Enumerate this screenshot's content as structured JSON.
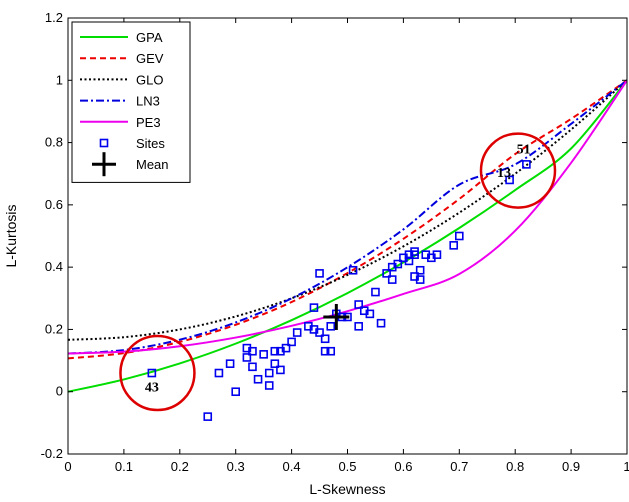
{
  "chart_data": {
    "type": "line",
    "title": "",
    "xlabel": "L-Skewness",
    "ylabel": "L-Kurtosis",
    "xlim": [
      0,
      1
    ],
    "ylim": [
      -0.2,
      1.2
    ],
    "xticks": [
      "0",
      "0.1",
      "0.2",
      "0.3",
      "0.4",
      "0.5",
      "0.6",
      "0.7",
      "0.8",
      "0.9",
      "1"
    ],
    "yticks": [
      "-0.2",
      "0",
      "0.2",
      "0.4",
      "0.6",
      "0.8",
      "1",
      "1.2"
    ],
    "grid": false,
    "legend_position": "top-left",
    "series": [
      {
        "name": "GPA",
        "color": "#00dd00",
        "style": "solid",
        "x": [
          0,
          0.1,
          0.2,
          0.3,
          0.4,
          0.5,
          0.6,
          0.7,
          0.8,
          0.9,
          1.0
        ],
        "y": [
          0.0,
          0.0394,
          0.0909,
          0.1544,
          0.2297,
          0.3167,
          0.4154,
          0.5257,
          0.6476,
          0.781,
          1.0
        ]
      },
      {
        "name": "GEV",
        "color": "#ee0000",
        "style": "dashed",
        "x": [
          0,
          0.1,
          0.2,
          0.3,
          0.4,
          0.5,
          0.6,
          0.7,
          0.8,
          0.9,
          1.0
        ],
        "y": [
          0.107,
          0.124,
          0.16,
          0.215,
          0.288,
          0.381,
          0.491,
          0.619,
          0.763,
          0.876,
          1.0
        ]
      },
      {
        "name": "GLO",
        "color": "#000000",
        "style": "dotted",
        "x": [
          0,
          0.1,
          0.2,
          0.3,
          0.4,
          0.5,
          0.6,
          0.7,
          0.8,
          0.9,
          1.0
        ],
        "y": [
          0.1667,
          0.175,
          0.2,
          0.2417,
          0.3,
          0.375,
          0.4667,
          0.575,
          0.7,
          0.8417,
          1.0
        ]
      },
      {
        "name": "LN3",
        "color": "#0000dd",
        "style": "dashdot",
        "x": [
          0,
          0.1,
          0.2,
          0.3,
          0.4,
          0.5,
          0.6,
          0.7,
          0.8,
          0.9,
          1.0
        ],
        "y": [
          0.1226,
          0.1337,
          0.167,
          0.2224,
          0.2999,
          0.3995,
          0.5212,
          0.665,
          0.73,
          0.86,
          1.0
        ]
      },
      {
        "name": "PE3",
        "color": "#ee00ee",
        "style": "solid",
        "x": [
          0,
          0.1,
          0.2,
          0.3,
          0.4,
          0.5,
          0.6,
          0.7,
          0.8,
          0.9,
          1.0
        ],
        "y": [
          0.1226,
          0.1286,
          0.146,
          0.1739,
          0.2116,
          0.2585,
          0.314,
          0.378,
          0.517,
          0.735,
          1.0
        ]
      }
    ],
    "sites": {
      "name": "Sites",
      "color": "#0000ee",
      "points": [
        [
          0.15,
          0.06
        ],
        [
          0.25,
          -0.08
        ],
        [
          0.27,
          0.06
        ],
        [
          0.29,
          0.09
        ],
        [
          0.3,
          0.0
        ],
        [
          0.32,
          0.11
        ],
        [
          0.32,
          0.14
        ],
        [
          0.33,
          0.08
        ],
        [
          0.33,
          0.13
        ],
        [
          0.34,
          0.04
        ],
        [
          0.35,
          0.12
        ],
        [
          0.36,
          0.02
        ],
        [
          0.36,
          0.06
        ],
        [
          0.37,
          0.09
        ],
        [
          0.37,
          0.13
        ],
        [
          0.38,
          0.07
        ],
        [
          0.38,
          0.13
        ],
        [
          0.39,
          0.14
        ],
        [
          0.4,
          0.16
        ],
        [
          0.41,
          0.19
        ],
        [
          0.43,
          0.21
        ],
        [
          0.44,
          0.2
        ],
        [
          0.44,
          0.27
        ],
        [
          0.45,
          0.19
        ],
        [
          0.45,
          0.38
        ],
        [
          0.46,
          0.13
        ],
        [
          0.47,
          0.13
        ],
        [
          0.46,
          0.17
        ],
        [
          0.47,
          0.21
        ],
        [
          0.48,
          0.25
        ],
        [
          0.49,
          0.24
        ],
        [
          0.5,
          0.24
        ],
        [
          0.51,
          0.39
        ],
        [
          0.52,
          0.21
        ],
        [
          0.52,
          0.28
        ],
        [
          0.53,
          0.26
        ],
        [
          0.54,
          0.25
        ],
        [
          0.55,
          0.32
        ],
        [
          0.56,
          0.22
        ],
        [
          0.57,
          0.38
        ],
        [
          0.58,
          0.36
        ],
        [
          0.58,
          0.4
        ],
        [
          0.59,
          0.41
        ],
        [
          0.6,
          0.43
        ],
        [
          0.61,
          0.44
        ],
        [
          0.61,
          0.42
        ],
        [
          0.62,
          0.44
        ],
        [
          0.62,
          0.45
        ],
        [
          0.62,
          0.37
        ],
        [
          0.63,
          0.36
        ],
        [
          0.63,
          0.39
        ],
        [
          0.64,
          0.44
        ],
        [
          0.65,
          0.43
        ],
        [
          0.66,
          0.44
        ],
        [
          0.69,
          0.47
        ],
        [
          0.7,
          0.5
        ],
        [
          0.79,
          0.68
        ],
        [
          0.82,
          0.73
        ]
      ]
    },
    "mean": {
      "name": "Mean",
      "x": 0.48,
      "y": 0.24,
      "color": "#000000"
    },
    "annotations": [
      {
        "text": "43",
        "x": 0.15,
        "y": 0.0
      },
      {
        "text": "13",
        "x": 0.78,
        "y": 0.69
      },
      {
        "text": "51",
        "x": 0.815,
        "y": 0.765
      }
    ],
    "circles": [
      {
        "cx": 0.16,
        "cy": 0.06,
        "color": "#dd0000"
      },
      {
        "cx": 0.805,
        "cy": 0.71,
        "color": "#dd0000"
      }
    ]
  }
}
